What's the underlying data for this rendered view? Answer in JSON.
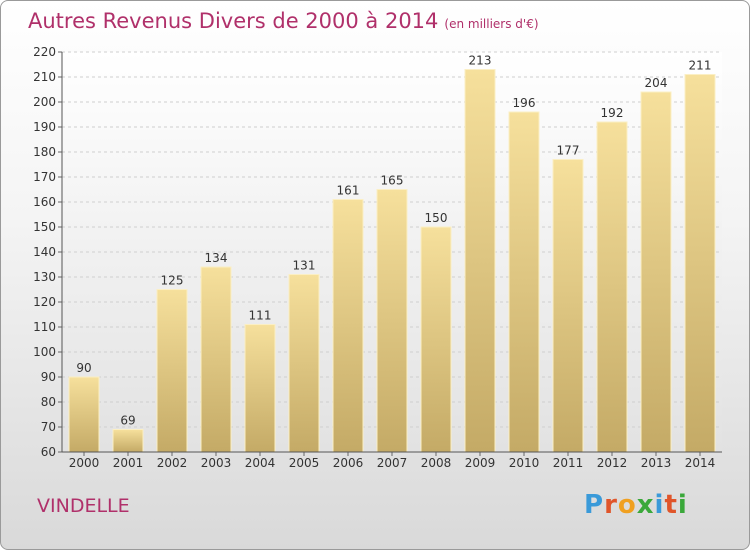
{
  "title": "Autres Revenus Divers de 2000 à 2014",
  "subtitle": "(en milliers d'€)",
  "commune": "VINDELLE",
  "logo": {
    "letters": [
      "P",
      "r",
      "o",
      "x",
      "i",
      "t",
      "i"
    ],
    "colors": [
      "#3a9ad9",
      "#e0552a",
      "#f0a020",
      "#3aa83a",
      "#3a9ad9",
      "#e0552a",
      "#3aa83a"
    ]
  },
  "chart_data": {
    "type": "bar",
    "categories": [
      "2000",
      "2001",
      "2002",
      "2003",
      "2004",
      "2005",
      "2006",
      "2007",
      "2008",
      "2009",
      "2010",
      "2011",
      "2012",
      "2013",
      "2014"
    ],
    "values": [
      90,
      69,
      125,
      134,
      111,
      131,
      161,
      165,
      150,
      213,
      196,
      177,
      192,
      204,
      211
    ],
    "ylim": [
      60,
      220
    ],
    "yticks": [
      60,
      70,
      80,
      90,
      100,
      110,
      120,
      130,
      140,
      150,
      160,
      170,
      180,
      190,
      200,
      210,
      220
    ],
    "grid": true,
    "bar_color": "#f2d890"
  }
}
